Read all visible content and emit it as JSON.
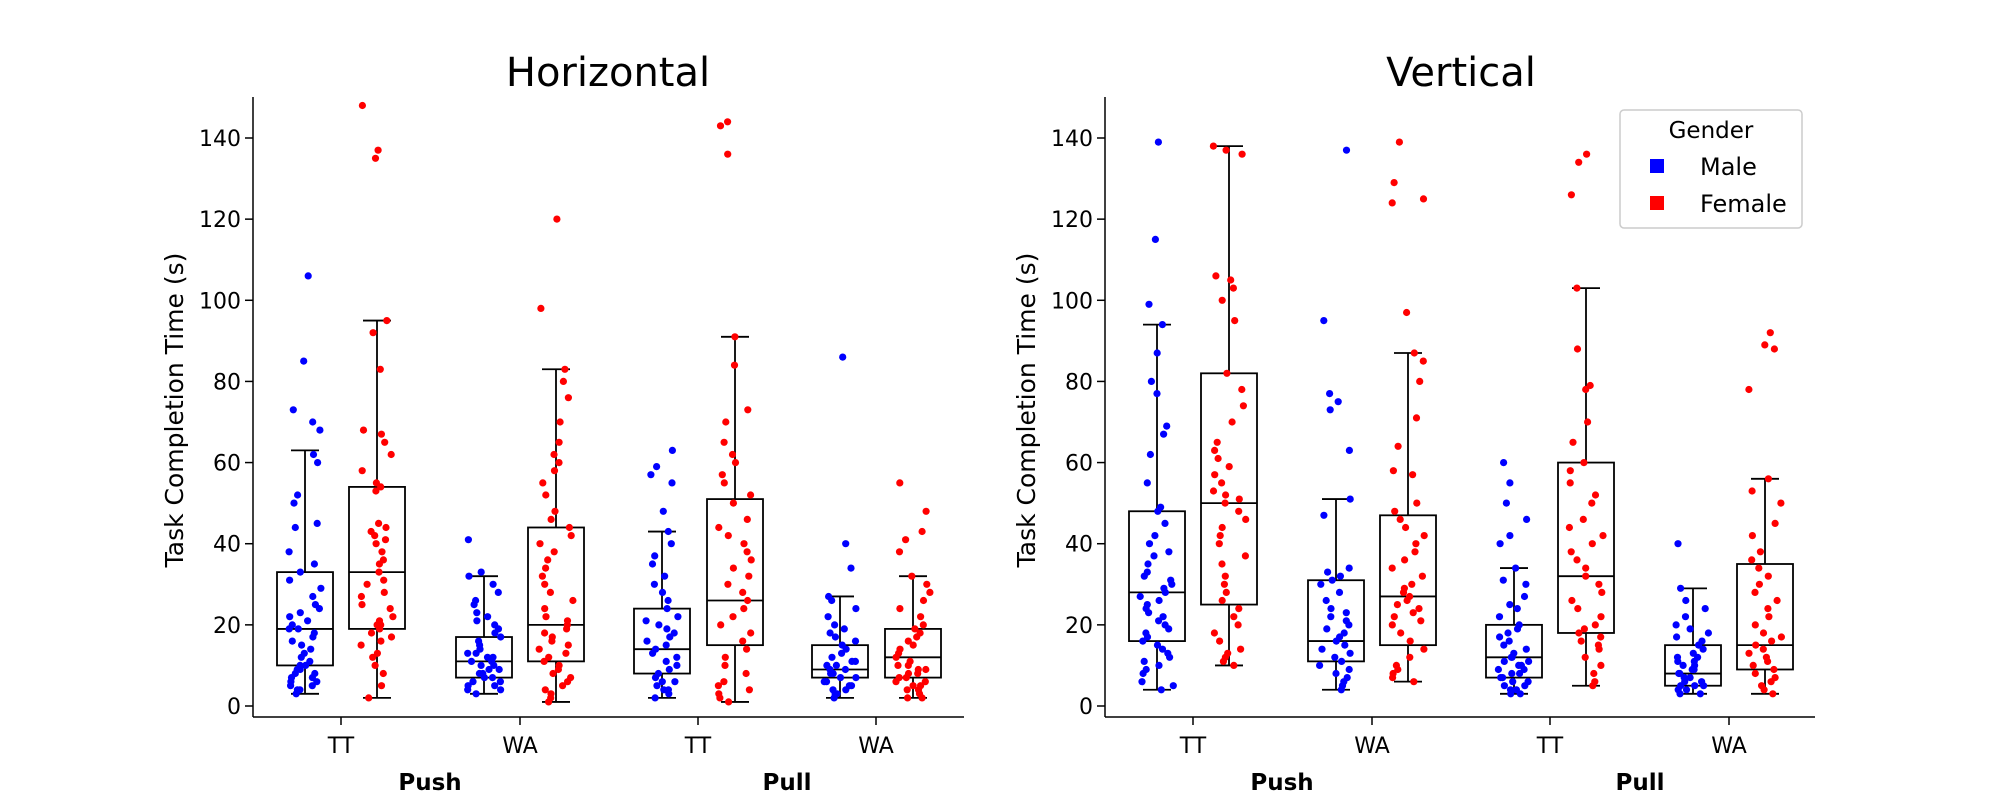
{
  "colors": {
    "male": "#0000ff",
    "female": "#ff0000"
  },
  "legend": {
    "title": "Gender",
    "placement": "top-right",
    "entries": [
      {
        "label": "Male",
        "color": "#0000ff"
      },
      {
        "label": "Female",
        "color": "#ff0000"
      }
    ]
  },
  "chart_data": [
    {
      "type": "box",
      "title": "Horizontal",
      "ylabel": "Task Completion Time (s)",
      "ylim": [
        -3,
        150
      ],
      "yticks": [
        0,
        20,
        40,
        60,
        80,
        100,
        120,
        140
      ],
      "groups": [
        {
          "label": "Push",
          "categories": [
            "TT",
            "WA"
          ]
        },
        {
          "label": "Pull",
          "categories": [
            "TT",
            "WA"
          ]
        }
      ],
      "boxes": [
        {
          "group": "Push",
          "category": "TT",
          "gender": "Male",
          "whisker_low": 3,
          "q1": 10,
          "median": 19,
          "q3": 33,
          "whisker_high": 63,
          "points": [
            3,
            4,
            4,
            5,
            5,
            6,
            6,
            7,
            7,
            8,
            8,
            9,
            9,
            10,
            10,
            11,
            12,
            13,
            14,
            15,
            16,
            17,
            18,
            19,
            19,
            20,
            21,
            22,
            23,
            24,
            25,
            27,
            29,
            31,
            33,
            35,
            38,
            44,
            45,
            50,
            52,
            60,
            62,
            68,
            70,
            73,
            85,
            106
          ]
        },
        {
          "group": "Push",
          "category": "TT",
          "gender": "Female",
          "whisker_low": 2,
          "q1": 19,
          "median": 33,
          "q3": 54,
          "whisker_high": 95,
          "points": [
            2,
            5,
            8,
            10,
            12,
            13,
            15,
            16,
            17,
            18,
            19,
            20,
            20,
            21,
            22,
            24,
            25,
            27,
            28,
            30,
            31,
            33,
            35,
            36,
            38,
            40,
            41,
            42,
            43,
            44,
            45,
            53,
            54,
            55,
            58,
            62,
            65,
            67,
            68,
            83,
            92,
            95,
            135,
            137,
            148
          ]
        },
        {
          "group": "Push",
          "category": "WA",
          "gender": "Male",
          "whisker_low": 3,
          "q1": 7,
          "median": 11,
          "q3": 17,
          "whisker_high": 32,
          "points": [
            3,
            4,
            4,
            5,
            5,
            6,
            6,
            7,
            7,
            8,
            8,
            9,
            9,
            10,
            10,
            11,
            11,
            12,
            12,
            13,
            13,
            14,
            15,
            16,
            17,
            18,
            19,
            20,
            21,
            22,
            23,
            25,
            26,
            28,
            30,
            32,
            33,
            41
          ]
        },
        {
          "group": "Push",
          "category": "WA",
          "gender": "Female",
          "whisker_low": 1,
          "q1": 11,
          "median": 20,
          "q3": 44,
          "whisker_high": 83,
          "points": [
            1,
            2,
            3,
            4,
            5,
            6,
            7,
            8,
            9,
            10,
            11,
            12,
            13,
            14,
            15,
            16,
            17,
            18,
            19,
            20,
            21,
            22,
            24,
            26,
            28,
            30,
            32,
            34,
            36,
            38,
            40,
            42,
            44,
            46,
            48,
            52,
            55,
            58,
            60,
            62,
            65,
            70,
            76,
            80,
            83,
            98,
            120
          ]
        },
        {
          "group": "Pull",
          "category": "TT",
          "gender": "Male",
          "whisker_low": 2,
          "q1": 8,
          "median": 14,
          "q3": 24,
          "whisker_high": 43,
          "points": [
            2,
            3,
            4,
            4,
            5,
            6,
            6,
            7,
            8,
            9,
            10,
            11,
            12,
            13,
            14,
            15,
            16,
            17,
            18,
            19,
            20,
            21,
            22,
            24,
            26,
            28,
            30,
            32,
            35,
            37,
            40,
            43,
            48,
            55,
            57,
            59,
            63
          ]
        },
        {
          "group": "Pull",
          "category": "TT",
          "gender": "Female",
          "whisker_low": 1,
          "q1": 15,
          "median": 26,
          "q3": 51,
          "whisker_high": 91,
          "points": [
            1,
            2,
            3,
            4,
            5,
            6,
            8,
            10,
            12,
            14,
            16,
            18,
            20,
            22,
            24,
            26,
            28,
            30,
            32,
            34,
            36,
            38,
            40,
            42,
            44,
            46,
            50,
            52,
            55,
            57,
            60,
            62,
            65,
            70,
            73,
            84,
            91,
            136,
            143,
            144
          ]
        },
        {
          "group": "Pull",
          "category": "WA",
          "gender": "Male",
          "whisker_low": 2,
          "q1": 7,
          "median": 9,
          "q3": 15,
          "whisker_high": 27,
          "points": [
            2,
            3,
            3,
            4,
            4,
            5,
            5,
            6,
            6,
            7,
            7,
            8,
            8,
            9,
            9,
            10,
            10,
            11,
            11,
            12,
            13,
            14,
            15,
            16,
            17,
            18,
            19,
            20,
            22,
            24,
            26,
            27,
            34,
            40,
            86
          ]
        },
        {
          "group": "Pull",
          "category": "WA",
          "gender": "Female",
          "whisker_low": 2,
          "q1": 7,
          "median": 12,
          "q3": 19,
          "whisker_high": 32,
          "points": [
            2,
            2,
            3,
            4,
            4,
            5,
            5,
            6,
            6,
            7,
            7,
            8,
            8,
            9,
            9,
            10,
            10,
            11,
            12,
            13,
            14,
            15,
            16,
            17,
            18,
            19,
            20,
            22,
            24,
            26,
            28,
            30,
            32,
            38,
            41,
            43,
            48,
            55
          ]
        }
      ]
    },
    {
      "type": "box",
      "title": "Vertical",
      "ylabel": "Task Completion Time (s)",
      "ylim": [
        -3,
        150
      ],
      "yticks": [
        0,
        20,
        40,
        60,
        80,
        100,
        120,
        140
      ],
      "groups": [
        {
          "label": "Push",
          "categories": [
            "TT",
            "WA"
          ]
        },
        {
          "label": "Pull",
          "categories": [
            "TT",
            "WA"
          ]
        }
      ],
      "boxes": [
        {
          "group": "Push",
          "category": "TT",
          "gender": "Male",
          "whisker_low": 4,
          "q1": 16,
          "median": 28,
          "q3": 48,
          "whisker_high": 94,
          "points": [
            4,
            5,
            6,
            8,
            9,
            10,
            11,
            12,
            13,
            14,
            15,
            16,
            17,
            18,
            19,
            20,
            21,
            22,
            23,
            24,
            25,
            26,
            27,
            28,
            29,
            30,
            31,
            32,
            33,
            35,
            37,
            38,
            40,
            42,
            45,
            48,
            49,
            55,
            62,
            67,
            69,
            77,
            80,
            87,
            94,
            99,
            115,
            139
          ]
        },
        {
          "group": "Push",
          "category": "TT",
          "gender": "Female",
          "whisker_low": 10,
          "q1": 25,
          "median": 50,
          "q3": 82,
          "whisker_high": 138,
          "points": [
            10,
            11,
            12,
            13,
            14,
            16,
            18,
            20,
            22,
            24,
            26,
            28,
            30,
            32,
            35,
            37,
            40,
            42,
            44,
            46,
            48,
            50,
            51,
            52,
            53,
            55,
            57,
            59,
            61,
            63,
            65,
            70,
            74,
            78,
            82,
            95,
            100,
            103,
            105,
            106,
            136,
            137,
            138
          ]
        },
        {
          "group": "Push",
          "category": "WA",
          "gender": "Male",
          "whisker_low": 4,
          "q1": 11,
          "median": 16,
          "q3": 31,
          "whisker_high": 51,
          "points": [
            4,
            5,
            6,
            7,
            8,
            9,
            10,
            11,
            12,
            13,
            14,
            15,
            16,
            17,
            18,
            19,
            20,
            21,
            22,
            23,
            24,
            26,
            28,
            30,
            31,
            32,
            33,
            34,
            47,
            51,
            63,
            73,
            75,
            77,
            95,
            137
          ]
        },
        {
          "group": "Push",
          "category": "WA",
          "gender": "Female",
          "whisker_low": 6,
          "q1": 15,
          "median": 27,
          "q3": 47,
          "whisker_high": 87,
          "points": [
            6,
            7,
            8,
            9,
            10,
            12,
            14,
            16,
            18,
            20,
            21,
            22,
            23,
            24,
            25,
            26,
            27,
            28,
            29,
            30,
            32,
            34,
            36,
            38,
            40,
            42,
            44,
            46,
            48,
            50,
            57,
            58,
            64,
            71,
            80,
            85,
            87,
            97,
            124,
            125,
            129,
            139
          ]
        },
        {
          "group": "Pull",
          "category": "TT",
          "gender": "Male",
          "whisker_low": 3,
          "q1": 7,
          "median": 12,
          "q3": 20,
          "whisker_high": 34,
          "points": [
            3,
            3,
            4,
            4,
            5,
            5,
            6,
            6,
            7,
            7,
            8,
            8,
            9,
            9,
            10,
            10,
            11,
            11,
            12,
            12,
            13,
            14,
            15,
            16,
            17,
            18,
            19,
            20,
            22,
            24,
            25,
            27,
            30,
            31,
            34,
            40,
            42,
            46,
            50,
            55,
            60
          ]
        },
        {
          "group": "Pull",
          "category": "TT",
          "gender": "Female",
          "whisker_low": 5,
          "q1": 18,
          "median": 32,
          "q3": 60,
          "whisker_high": 103,
          "points": [
            5,
            6,
            8,
            10,
            12,
            14,
            15,
            16,
            17,
            18,
            19,
            20,
            22,
            24,
            26,
            28,
            30,
            32,
            34,
            36,
            38,
            40,
            42,
            44,
            46,
            50,
            52,
            55,
            58,
            60,
            65,
            70,
            78,
            79,
            88,
            103,
            126,
            134,
            136
          ]
        },
        {
          "group": "Pull",
          "category": "WA",
          "gender": "Male",
          "whisker_low": 3,
          "q1": 5,
          "median": 8,
          "q3": 15,
          "whisker_high": 29,
          "points": [
            3,
            3,
            4,
            4,
            5,
            5,
            5,
            6,
            6,
            7,
            7,
            8,
            8,
            9,
            9,
            10,
            10,
            11,
            11,
            12,
            12,
            13,
            14,
            15,
            16,
            17,
            18,
            19,
            20,
            22,
            24,
            26,
            29,
            40
          ]
        },
        {
          "group": "Pull",
          "category": "WA",
          "gender": "Female",
          "whisker_low": 3,
          "q1": 9,
          "median": 15,
          "q3": 35,
          "whisker_high": 56,
          "points": [
            3,
            4,
            5,
            6,
            7,
            8,
            9,
            10,
            11,
            12,
            13,
            14,
            15,
            16,
            17,
            18,
            20,
            22,
            24,
            26,
            28,
            30,
            32,
            34,
            36,
            38,
            42,
            45,
            50,
            53,
            56,
            78,
            88,
            89,
            92
          ]
        }
      ]
    }
  ]
}
